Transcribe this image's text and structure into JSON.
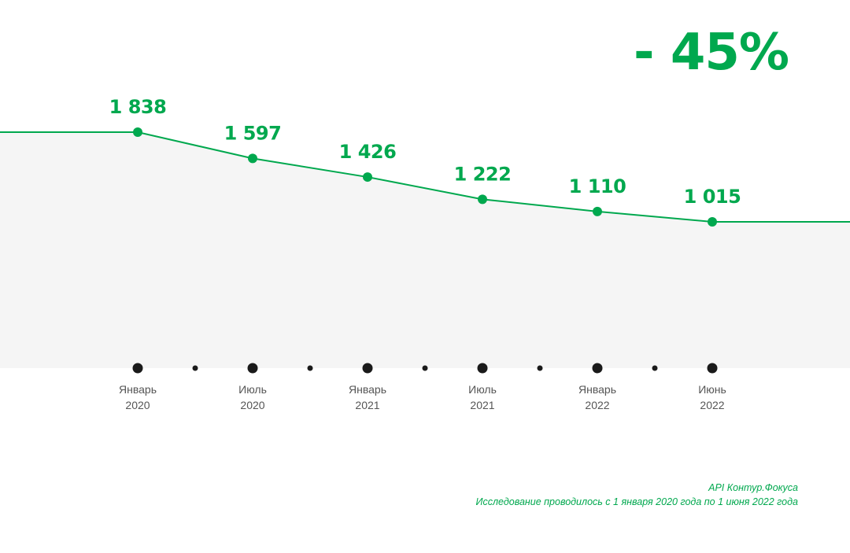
{
  "headline": "- 45%",
  "footnote": {
    "source": "API Контур.Фокуса",
    "period": "Исследование проводилось с 1 января 2020 года по 1 июня 2022 года"
  },
  "colors": {
    "line": "#00a84e",
    "area": "#f5f5f5",
    "timeline_dot": "#1a1a1a",
    "tick_label": "#555555"
  },
  "chart_data": {
    "type": "line",
    "categories": [
      [
        "Январь",
        "2020"
      ],
      [
        "Июль",
        "2020"
      ],
      [
        "Январь",
        "2021"
      ],
      [
        "Июль",
        "2021"
      ],
      [
        "Январь",
        "2022"
      ],
      [
        "Июнь",
        "2022"
      ]
    ],
    "values": [
      1838,
      1597,
      1426,
      1222,
      1110,
      1015
    ],
    "data_labels": [
      "1 838",
      "1 597",
      "1 426",
      "1 222",
      "1 110",
      "1 015"
    ],
    "minor_ticks_between_categories": true,
    "area_fill": true,
    "grid": false
  }
}
